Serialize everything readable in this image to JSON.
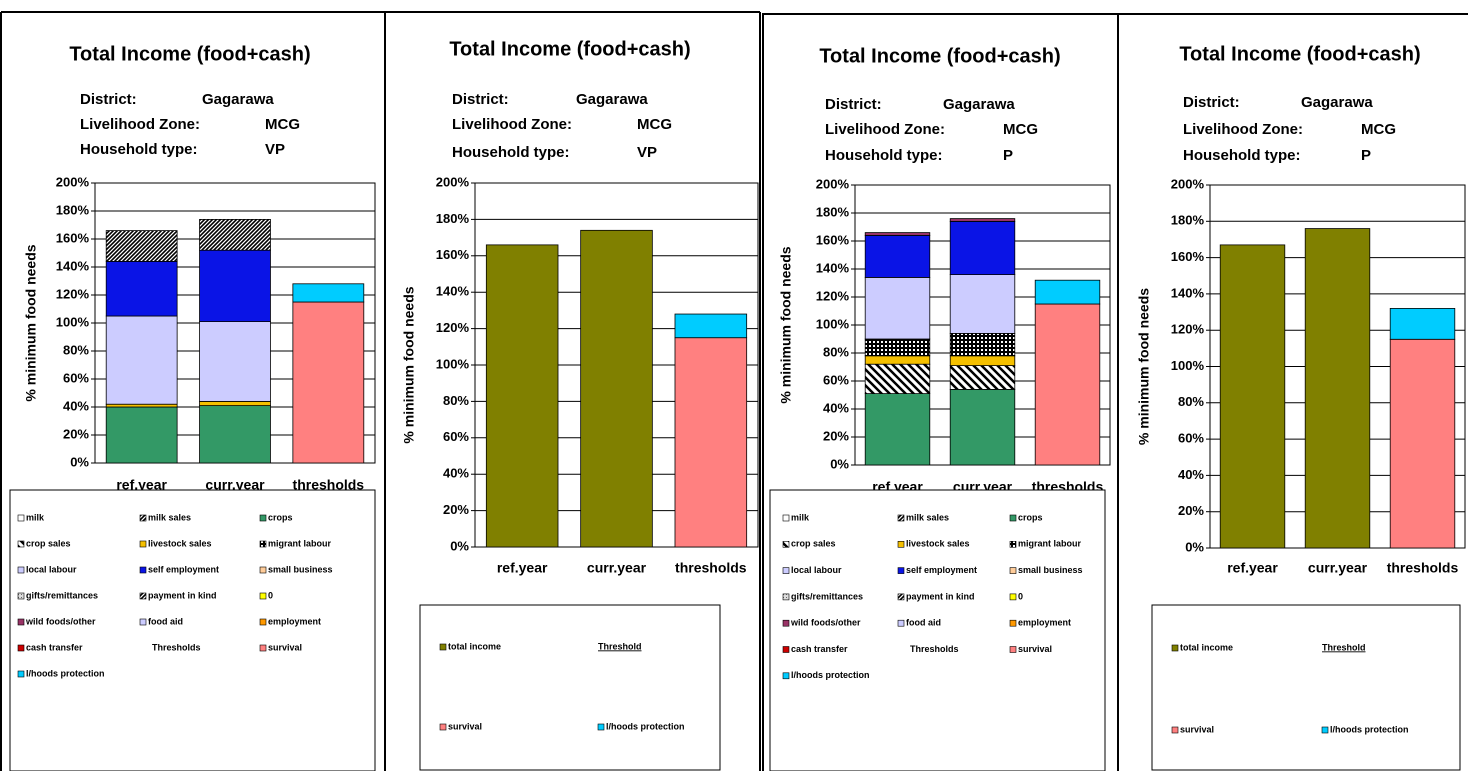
{
  "chart_data": [
    {
      "type": "stacked bar",
      "title": "Total Income (food+cash)",
      "info": [
        {
          "label": "District:",
          "value": "Gagarawa"
        },
        {
          "label": "Livelihood Zone:",
          "value": "MCG"
        },
        {
          "label": "Household type:",
          "value": "VP"
        }
      ],
      "ylabel": "% minimum food needs",
      "categories": [
        "ref.year",
        "curr.year",
        "thresholds"
      ],
      "ylim": [
        0,
        200
      ],
      "yticks": [
        {
          "value": 0,
          "label": "0%"
        },
        {
          "value": 20,
          "label": "20%"
        },
        {
          "value": 40,
          "label": "40%"
        },
        {
          "value": 60,
          "label": "60%"
        },
        {
          "value": 80,
          "label": "80%"
        },
        {
          "value": 100,
          "label": "100%"
        },
        {
          "value": 120,
          "label": "120%"
        },
        {
          "value": 140,
          "label": "140%"
        },
        {
          "value": 160,
          "label": "160%"
        },
        {
          "value": 180,
          "label": "180%"
        },
        {
          "value": 200,
          "label": "200%"
        }
      ],
      "grid": true,
      "legend_heading": "Thresholds",
      "series": [
        {
          "name": "milk",
          "color": "#ffffff",
          "values": [
            0,
            0,
            null
          ]
        },
        {
          "name": "milk sales",
          "color": "url(#hatch)",
          "values": [
            0,
            0,
            null
          ]
        },
        {
          "name": "crops",
          "color": "#339966",
          "values": [
            40,
            41,
            null
          ]
        },
        {
          "name": "crop sales",
          "color": "url(#diag)",
          "values": [
            0,
            0,
            null
          ]
        },
        {
          "name": "livestock sales",
          "color": "#f5c000",
          "values": [
            2,
            3,
            null
          ]
        },
        {
          "name": "migrant labour",
          "color": "url(#grid)",
          "values": [
            0,
            0,
            null
          ]
        },
        {
          "name": "local labour",
          "color": "#ccccff",
          "values": [
            63,
            57,
            null
          ]
        },
        {
          "name": "self employment",
          "color": "#0a14e6",
          "values": [
            39,
            51,
            null
          ]
        },
        {
          "name": "small business",
          "color": "#ffcc99",
          "values": [
            0,
            0,
            null
          ]
        },
        {
          "name": "gifts/remittances",
          "color": "url(#dots)",
          "values": [
            0,
            0,
            null
          ]
        },
        {
          "name": "payment in kind",
          "color": "url(#hatch)",
          "values": [
            22,
            22,
            null
          ]
        },
        {
          "name": "0",
          "color": "#ffff00",
          "values": [
            0,
            0,
            null
          ]
        },
        {
          "name": "wild foods/other",
          "color": "#993366",
          "values": [
            0,
            0,
            null
          ]
        },
        {
          "name": "food aid",
          "color": "#ccccff",
          "values": [
            0,
            0,
            null
          ]
        },
        {
          "name": "employment",
          "color": "#ff9900",
          "values": [
            0,
            0,
            null
          ]
        },
        {
          "name": "cash transfer",
          "color": "#cc0000",
          "values": [
            0,
            0,
            null
          ]
        },
        {
          "name": "survival",
          "color": "#ff8080",
          "values": [
            null,
            null,
            115
          ]
        },
        {
          "name": "l/hoods protection",
          "color": "#00ccff",
          "values": [
            null,
            null,
            13
          ]
        }
      ]
    },
    {
      "type": "bar",
      "title": "Total Income (food+cash)",
      "info": [
        {
          "label": "District:",
          "value": "Gagarawa"
        },
        {
          "label": "Livelihood Zone:",
          "value": "MCG"
        },
        {
          "label": "Household type:",
          "value": "VP"
        }
      ],
      "ylabel": "% minimum food needs",
      "categories": [
        "ref.year",
        "curr.year",
        "thresholds"
      ],
      "ylim": [
        0,
        200
      ],
      "yticks": [
        {
          "value": 0,
          "label": "0%"
        },
        {
          "value": 20,
          "label": "20%"
        },
        {
          "value": 40,
          "label": "40%"
        },
        {
          "value": 60,
          "label": "60%"
        },
        {
          "value": 80,
          "label": "80%"
        },
        {
          "value": 100,
          "label": "100%"
        },
        {
          "value": 120,
          "label": "120%"
        },
        {
          "value": 140,
          "label": "140%"
        },
        {
          "value": 160,
          "label": "160%"
        },
        {
          "value": 180,
          "label": "180%"
        },
        {
          "value": 200,
          "label": "200%"
        }
      ],
      "grid": true,
      "legend_heading": "Threshold",
      "series": [
        {
          "name": "total income",
          "color": "#808000",
          "values": [
            166,
            174,
            null
          ]
        },
        {
          "name": "survival",
          "color": "#ff8080",
          "values": [
            null,
            null,
            115
          ]
        },
        {
          "name": "l/hoods protection",
          "color": "#00ccff",
          "values": [
            null,
            null,
            13
          ]
        }
      ]
    },
    {
      "type": "stacked bar",
      "title": "Total Income (food+cash)",
      "info": [
        {
          "label": "District:",
          "value": "Gagarawa"
        },
        {
          "label": "Livelihood Zone:",
          "value": "MCG"
        },
        {
          "label": "Household type:",
          "value": "P"
        }
      ],
      "ylabel": "% minimum food needs",
      "categories": [
        "ref.year",
        "curr.year",
        "thresholds"
      ],
      "ylim": [
        0,
        200
      ],
      "yticks": [
        {
          "value": 0,
          "label": "0%"
        },
        {
          "value": 20,
          "label": "20%"
        },
        {
          "value": 40,
          "label": "40%"
        },
        {
          "value": 60,
          "label": "60%"
        },
        {
          "value": 80,
          "label": "80%"
        },
        {
          "value": 100,
          "label": "100%"
        },
        {
          "value": 120,
          "label": "120%"
        },
        {
          "value": 140,
          "label": "140%"
        },
        {
          "value": 160,
          "label": "160%"
        },
        {
          "value": 180,
          "label": "180%"
        },
        {
          "value": 200,
          "label": "200%"
        }
      ],
      "grid": true,
      "legend_heading": "Thresholds",
      "series": [
        {
          "name": "milk",
          "color": "#ffffff",
          "values": [
            0,
            0,
            null
          ]
        },
        {
          "name": "milk sales",
          "color": "url(#hatch)",
          "values": [
            0,
            0,
            null
          ]
        },
        {
          "name": "crops",
          "color": "#339966",
          "values": [
            51,
            54,
            null
          ]
        },
        {
          "name": "crop sales",
          "color": "url(#diag)",
          "values": [
            21,
            17,
            null
          ]
        },
        {
          "name": "livestock sales",
          "color": "#f5c000",
          "values": [
            6,
            7,
            null
          ]
        },
        {
          "name": "migrant labour",
          "color": "url(#grid)",
          "values": [
            12,
            16,
            null
          ]
        },
        {
          "name": "local labour",
          "color": "#ccccff",
          "values": [
            44,
            42,
            null
          ]
        },
        {
          "name": "self employment",
          "color": "#0a14e6",
          "values": [
            30,
            38,
            null
          ]
        },
        {
          "name": "small business",
          "color": "#ffcc99",
          "values": [
            0,
            0,
            null
          ]
        },
        {
          "name": "gifts/remittances",
          "color": "url(#dots)",
          "values": [
            0,
            0,
            null
          ]
        },
        {
          "name": "payment in kind",
          "color": "url(#hatch)",
          "values": [
            0,
            0,
            null
          ]
        },
        {
          "name": "0",
          "color": "#ffff00",
          "values": [
            0,
            0,
            null
          ]
        },
        {
          "name": "wild foods/other",
          "color": "#993366",
          "values": [
            2,
            2,
            null
          ]
        },
        {
          "name": "food aid",
          "color": "#ccccff",
          "values": [
            0,
            0,
            null
          ]
        },
        {
          "name": "employment",
          "color": "#ff9900",
          "values": [
            0,
            0,
            null
          ]
        },
        {
          "name": "cash transfer",
          "color": "#cc0000",
          "values": [
            0,
            0,
            null
          ]
        },
        {
          "name": "survival",
          "color": "#ff8080",
          "values": [
            null,
            null,
            115
          ]
        },
        {
          "name": "l/hoods protection",
          "color": "#00ccff",
          "values": [
            null,
            null,
            17
          ]
        }
      ]
    },
    {
      "type": "bar",
      "title": "Total Income (food+cash)",
      "info": [
        {
          "label": "District:",
          "value": "Gagarawa"
        },
        {
          "label": "Livelihood Zone:",
          "value": "MCG"
        },
        {
          "label": "Household type:",
          "value": "P"
        }
      ],
      "ylabel": "% minimum food needs",
      "categories": [
        "ref.year",
        "curr.year",
        "thresholds"
      ],
      "ylim": [
        0,
        200
      ],
      "yticks": [
        {
          "value": 0,
          "label": "0%"
        },
        {
          "value": 20,
          "label": "20%"
        },
        {
          "value": 40,
          "label": "40%"
        },
        {
          "value": 60,
          "label": "60%"
        },
        {
          "value": 80,
          "label": "80%"
        },
        {
          "value": 100,
          "label": "100%"
        },
        {
          "value": 120,
          "label": "120%"
        },
        {
          "value": 140,
          "label": "140%"
        },
        {
          "value": 160,
          "label": "160%"
        },
        {
          "value": 180,
          "label": "180%"
        },
        {
          "value": 200,
          "label": "200%"
        }
      ],
      "grid": true,
      "legend_heading": "Threshold",
      "series": [
        {
          "name": "total income",
          "color": "#808000",
          "values": [
            167,
            176,
            null
          ]
        },
        {
          "name": "survival",
          "color": "#ff8080",
          "values": [
            null,
            null,
            115
          ]
        },
        {
          "name": "l/hoods protection",
          "color": "#00ccff",
          "values": [
            null,
            null,
            17
          ]
        }
      ]
    }
  ]
}
